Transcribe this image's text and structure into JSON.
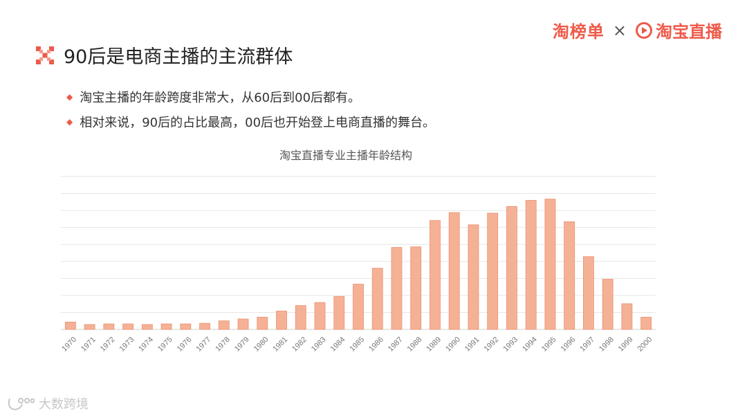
{
  "header": {
    "brand_left": "淘榜单",
    "separator": "×",
    "brand_right": "淘宝直播",
    "brand_color": "#ee5a4a"
  },
  "title": "90后是电商主播的主流群体",
  "bullets": [
    "淘宝主播的年龄跨度非常大，从60后到00后都有。",
    "相对来说，90后的占比最高，00后也开始登上电商直播的舞台。"
  ],
  "watermark": "大数跨境",
  "chart_data": {
    "type": "bar",
    "title": "淘宝直播专业主播年龄结构",
    "categories": [
      "1970",
      "1971",
      "1972",
      "1973",
      "1974",
      "1975",
      "1976",
      "1977",
      "1978",
      "1979",
      "1980",
      "1981",
      "1982",
      "1983",
      "1984",
      "1985",
      "1986",
      "1987",
      "1988",
      "1989",
      "1990",
      "1991",
      "1992",
      "1993",
      "1994",
      "1995",
      "1996",
      "1997",
      "1998",
      "1999",
      "2000"
    ],
    "values": [
      1.2,
      0.8,
      0.9,
      0.9,
      0.8,
      0.9,
      0.9,
      1.0,
      1.4,
      1.7,
      2.0,
      3.0,
      3.9,
      4.4,
      5.4,
      7.4,
      10.0,
      13.4,
      13.5,
      17.8,
      19.1,
      17.1,
      19.0,
      20.1,
      21.1,
      21.3,
      17.6,
      11.9,
      8.2,
      4.2,
      2.0
    ],
    "ylim": [
      0,
      25
    ],
    "gridlines": 9,
    "bar_color": "#f5b196",
    "bar_edge_color": "#ec8f6e",
    "xlabel": "",
    "ylabel": ""
  }
}
